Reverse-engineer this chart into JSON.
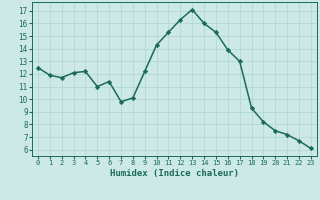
{
  "x": [
    0,
    1,
    2,
    3,
    4,
    5,
    6,
    7,
    8,
    9,
    10,
    11,
    12,
    13,
    14,
    15,
    16,
    17,
    18,
    19,
    20,
    21,
    22,
    23
  ],
  "y": [
    12.5,
    11.9,
    11.7,
    12.1,
    12.2,
    11.0,
    11.4,
    9.8,
    10.1,
    12.2,
    14.3,
    15.3,
    16.3,
    17.1,
    16.0,
    15.3,
    13.9,
    13.0,
    9.3,
    8.2,
    7.5,
    7.2,
    6.7,
    6.1
  ],
  "line_color": "#1a6b5a",
  "marker": "D",
  "markersize": 2.2,
  "bg_color": "#cce9e5",
  "grid_color": "#aed4ce",
  "xlabel": "Humidex (Indice chaleur)",
  "ylim": [
    5.5,
    17.7
  ],
  "xlim": [
    -0.5,
    23.5
  ],
  "yticks": [
    6,
    7,
    8,
    9,
    10,
    11,
    12,
    13,
    14,
    15,
    16,
    17
  ],
  "xticks": [
    0,
    1,
    2,
    3,
    4,
    5,
    6,
    7,
    8,
    9,
    10,
    11,
    12,
    13,
    14,
    15,
    16,
    17,
    18,
    19,
    20,
    21,
    22,
    23
  ],
  "tick_color": "#1a6b5a",
  "label_color": "#1a6b5a",
  "axis_color": "#1a6b5a",
  "xlabel_fontsize": 6.5,
  "tick_fontsize_x": 5.0,
  "tick_fontsize_y": 5.5,
  "linewidth": 1.1
}
